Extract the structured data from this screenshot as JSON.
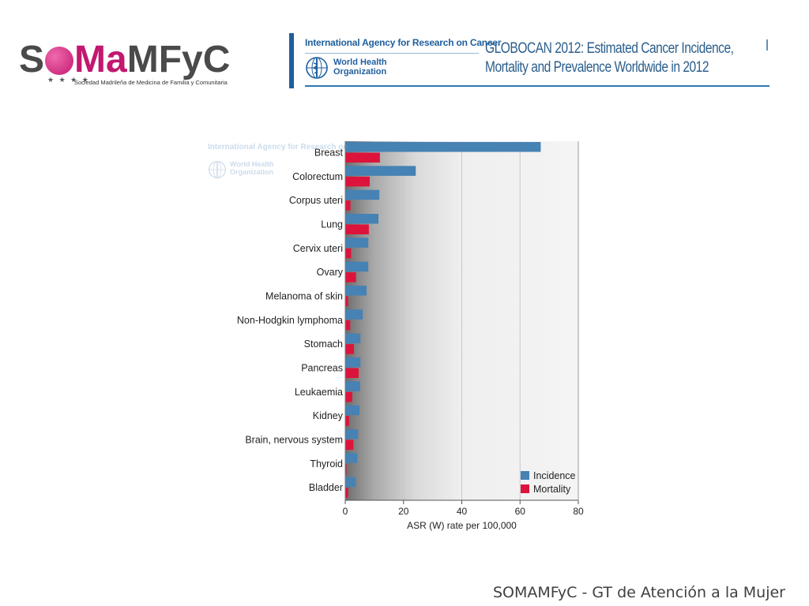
{
  "logo": {
    "text_s": "S",
    "text_ma": "Ma",
    "text_mfyc": "MFyC",
    "subtitle": "Sociedad Madrileña de Medicina de Familia y Comunitaria"
  },
  "header": {
    "agency": "International Agency for Research on Cancer",
    "who_line1": "World Health",
    "who_line2": "Organization",
    "title_line1": "GLOBOCAN 2012: Estimated Cancer Incidence,",
    "title_line2": "Mortality and Prevalence Worldwide in 2012"
  },
  "watermark": {
    "agency": "International Agency for Research on",
    "who_line1": "World Health",
    "who_line2": "Organization"
  },
  "chart_data": {
    "type": "bar",
    "orientation": "horizontal",
    "categories": [
      "Breast",
      "Colorectum",
      "Corpus uteri",
      "Lung",
      "Cervix uteri",
      "Ovary",
      "Melanoma of skin",
      "Non-Hodgkin lymphoma",
      "Stomach",
      "Pancreas",
      "Leukaemia",
      "Kidney",
      "Brain, nervous system",
      "Thyroid",
      "Bladder"
    ],
    "series": [
      {
        "name": "Incidence",
        "color": "#4682b4",
        "values": [
          67.1,
          24.2,
          11.7,
          11.4,
          7.9,
          7.9,
          7.3,
          6.0,
          5.2,
          5.2,
          5.1,
          4.9,
          4.4,
          4.1,
          3.6
        ]
      },
      {
        "name": "Mortality",
        "color": "#dc143c",
        "values": [
          11.9,
          8.4,
          1.8,
          8.1,
          2.0,
          3.7,
          1.0,
          1.7,
          3.0,
          4.6,
          2.4,
          1.3,
          2.8,
          0.4,
          1.0
        ]
      }
    ],
    "xlabel": "ASR (W) rate per 100,000",
    "xlim": [
      0,
      80
    ],
    "xticks": [
      "0",
      "20",
      "40",
      "60",
      "80"
    ],
    "grid": true,
    "legend_position": "bottom-right"
  },
  "footer": {
    "text": "SOMAMFyC - GT de Atención a la Mujer"
  }
}
